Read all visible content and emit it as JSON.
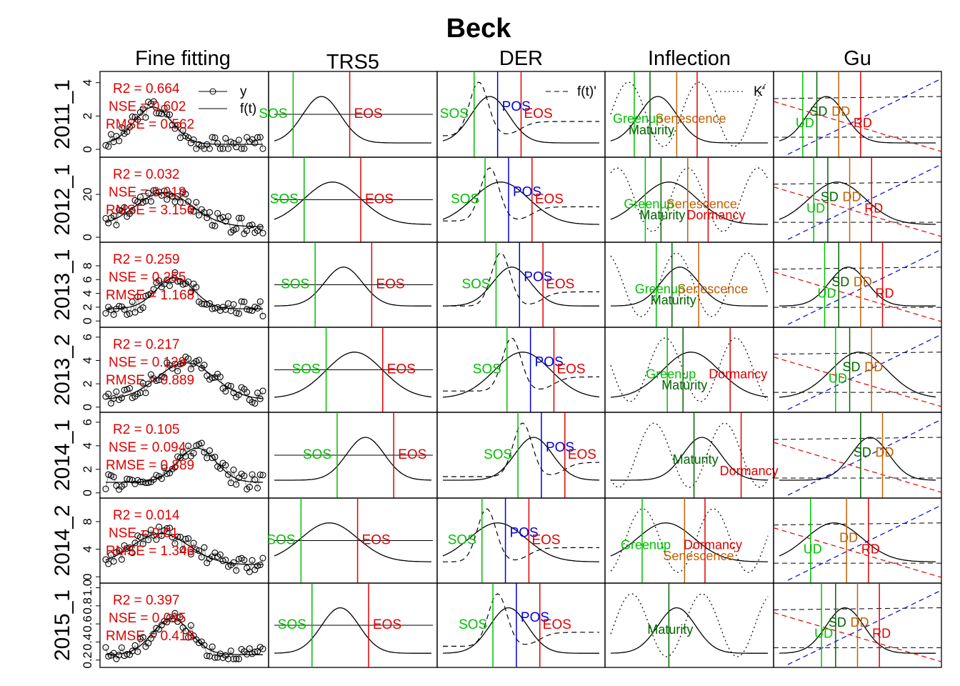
{
  "title": "Beck",
  "columns": [
    "Fine fitting",
    "TRS5",
    "DER",
    "Inflection",
    "Gu"
  ],
  "rows": [
    {
      "label": "2011_1",
      "yticks": [
        0,
        2,
        4
      ],
      "ylim": [
        -0.3,
        4.5
      ],
      "stats": {
        "r2": "R2 = 0.664",
        "nse": "NSE = 0.602",
        "rmse": "RMSE = 0.562"
      }
    },
    {
      "label": "2012_1",
      "yticks": [
        0,
        20
      ],
      "ylim": [
        -1,
        36
      ],
      "stats": {
        "r2": "R2 = 0.032",
        "nse": "NSE = 0.018",
        "rmse": "RMSE = 3.156"
      }
    },
    {
      "label": "2013_1",
      "yticks": [
        0,
        2,
        4,
        6,
        8
      ],
      "ylim": [
        -0.5,
        11
      ],
      "stats": {
        "r2": "R2 = 0.259",
        "nse": "NSE = 0.255",
        "rmse": "RMSE = 1.168"
      }
    },
    {
      "label": "2013_2",
      "yticks": [
        0,
        2,
        4,
        6
      ],
      "ylim": [
        -0.2,
        6.6
      ],
      "stats": {
        "r2": "R2 = 0.217",
        "nse": "NSE = 0.129",
        "rmse": "RMSE = 0.889"
      }
    },
    {
      "label": "2014_1",
      "yticks": [
        0,
        2,
        4,
        6
      ],
      "ylim": [
        -0.2,
        6.6
      ],
      "stats": {
        "r2": "R2 = 0.105",
        "nse": "NSE = 0.094",
        "rmse": "RMSE = 0.889"
      }
    },
    {
      "label": "2014_2",
      "yticks": [
        0,
        4,
        8
      ],
      "ylim": [
        -0.5,
        11
      ],
      "stats": {
        "r2": "R2 = 0.014",
        "nse": "NSE = 0.01",
        "rmse": "RMSE = 1.346"
      }
    },
    {
      "label": "2015_1",
      "yticks": [
        0.2,
        0.4,
        0.6,
        0.8,
        1.0
      ],
      "yticklabels": [
        "0.2",
        "0.4",
        "0.6",
        "0.8",
        "1.0"
      ],
      "ylim": [
        0.15,
        1.02
      ],
      "stats": {
        "r2": "R2 = 0.397",
        "nse": "NSE = 0.095",
        "rmse": "RMSE = 0.418"
      }
    }
  ],
  "legend_fine": {
    "y": "y",
    "ft": "f(t)"
  },
  "legend_der": "f(t)'",
  "legend_inflection": "K'",
  "colors": {
    "sos": "#00c000",
    "eos": "#e00000",
    "pos": "#0000e0",
    "greenup": "#00c000",
    "maturity": "#006400",
    "senescence": "#c06000",
    "dormancy": "#e00000",
    "ud": "#00c000",
    "sd": "#006400",
    "dd": "#c06000",
    "rd": "#e00000",
    "obs_line": "#a0a0a0"
  },
  "chart_data": {
    "type": "line",
    "method": "Beck",
    "panels": [
      {
        "row": "2011_1",
        "TRS5": {
          "SOS": "SOS",
          "EOS": "EOS"
        },
        "DER": {
          "SOS": "SOS",
          "POS": "POS",
          "EOS": "EOS"
        },
        "Inflection": {
          "Greenup": "Greenup",
          "Maturity": "Maturity",
          "Senescence": "Senescence",
          "Dormancy": ""
        },
        "Gu": {
          "UD": "UD",
          "SD": "SD",
          "DD": "DD",
          "RD": "RD"
        }
      },
      {
        "row": "2012_1",
        "TRS5": {
          "SOS": "SOS",
          "EOS": "EOS"
        },
        "DER": {
          "SOS": "SOS",
          "POS": "POS",
          "EOS": "EOS"
        },
        "Inflection": {
          "Greenup": "Greenup",
          "Maturity": "Maturity",
          "Senescence": "Senescence",
          "Dormancy": "Dormancy"
        },
        "Gu": {
          "UD": "UD",
          "SD": "SD",
          "DD": "DD",
          "RD": "RD"
        }
      },
      {
        "row": "2013_1",
        "TRS5": {
          "SOS": "SOS",
          "EOS": "EOS"
        },
        "DER": {
          "SOS": "SOS",
          "POS": "POS",
          "EOS": "EOS"
        },
        "Inflection": {
          "Greenup": "Greenup",
          "Maturity": "Maturity",
          "Senescence": "Senescence"
        },
        "Gu": {
          "UD": "UD",
          "SD": "SD",
          "DD": "DD",
          "RD": "RD"
        }
      },
      {
        "row": "2013_2",
        "TRS5": {
          "SOS": "SOS",
          "EOS": "EOS"
        },
        "DER": {
          "SOS": "SOS",
          "POS": "POS",
          "EOS": "EOS"
        },
        "Inflection": {
          "Greenup": "Greenup",
          "Maturity": "Maturity",
          "Dormancy": "Dormancy"
        },
        "Gu": {
          "UD": "UD",
          "SD": "SD",
          "DD": "DD"
        }
      },
      {
        "row": "2014_1",
        "TRS5": {
          "SOS": "SOS",
          "EOS": "EOS"
        },
        "DER": {
          "SOS": "SOS",
          "POS": "POS",
          "EOS": "EOS"
        },
        "Inflection": {
          "Maturity": "Maturity",
          "Dormancy": "Dormancy"
        },
        "Gu": {
          "SD": "SD",
          "DD": "DD"
        }
      },
      {
        "row": "2014_2",
        "TRS5": {
          "SOS": "SOS",
          "EOS": "EOS"
        },
        "DER": {
          "SOS": "SOS",
          "POS": "POS",
          "EOS": "EOS"
        },
        "Inflection": {
          "Greenup": "Greenup",
          "Senescence": "Senescence",
          "Dormancy": "Dormancy"
        },
        "Gu": {
          "UD": "UD",
          "DD": "DD",
          "RD": "RD"
        }
      },
      {
        "row": "2015_1",
        "TRS5": {
          "SOS": "SOS",
          "EOS": "EOS"
        },
        "DER": {
          "SOS": "SOS",
          "POS": "POS",
          "EOS": "EOS"
        },
        "Inflection": {
          "Maturity": "Maturity"
        },
        "Gu": {
          "UD": "UD",
          "SD": "SD",
          "DD": "DD",
          "RD": "RD"
        }
      }
    ]
  }
}
